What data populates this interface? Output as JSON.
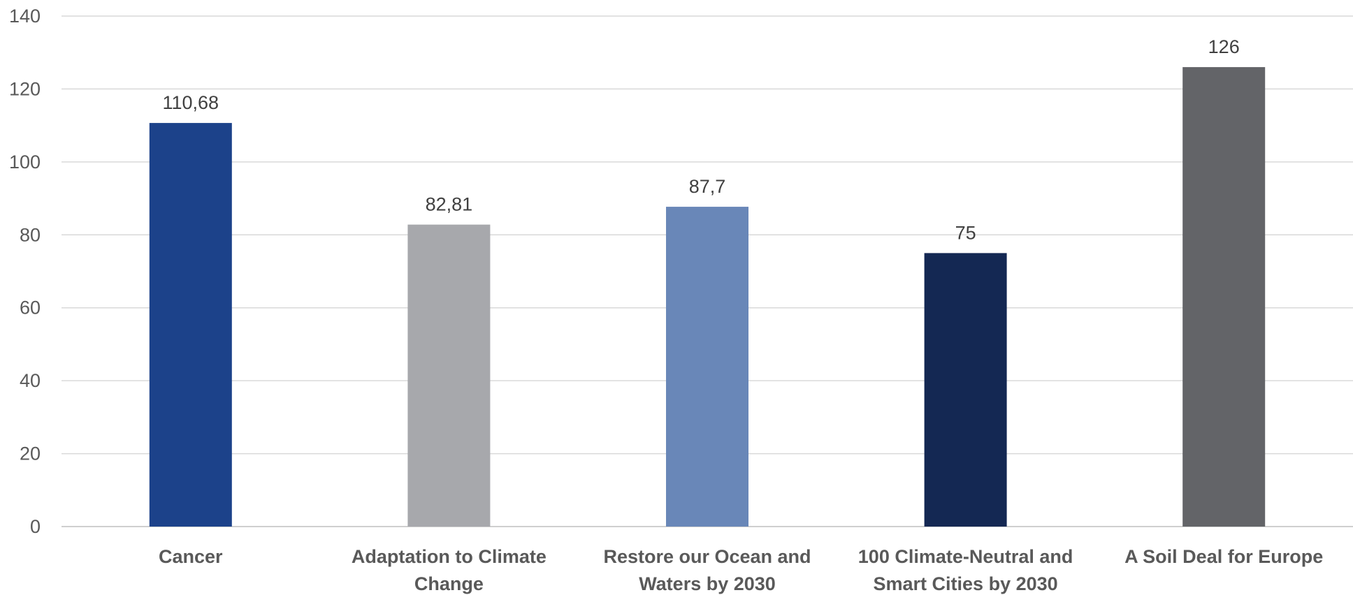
{
  "chart_data": {
    "type": "bar",
    "categories": [
      [
        "Cancer"
      ],
      [
        "Adaptation to Climate",
        "Change"
      ],
      [
        "Restore our Ocean and",
        "Waters by 2030"
      ],
      [
        "100 Climate-Neutral and",
        "Smart Cities by 2030"
      ],
      [
        "A Soil Deal for Europe"
      ]
    ],
    "values": [
      110.68,
      82.81,
      87.7,
      75,
      126
    ],
    "value_labels": [
      "110,68",
      "82,81",
      "87,7",
      "75",
      "126"
    ],
    "colors": [
      "#1c428a",
      "#a7a8ac",
      "#6987b8",
      "#142853",
      "#636468"
    ],
    "ylim": [
      0,
      140
    ],
    "yticks": [
      0,
      20,
      40,
      60,
      80,
      100,
      120,
      140
    ],
    "grid": true,
    "legend": "none"
  }
}
